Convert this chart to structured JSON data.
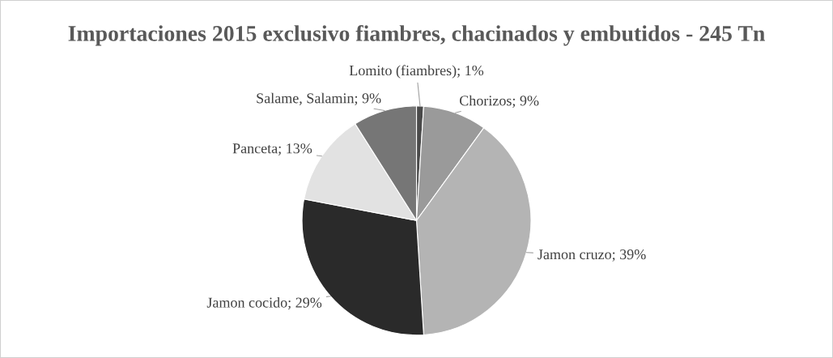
{
  "chart_data": {
    "type": "pie",
    "title": "Importaciones 2015 exclusivo fiambres, chacinados y embutidos - 245 Tn",
    "categories": [
      "Lomito (fiambres)",
      "Chorizos",
      "Jamon cruzo",
      "Jamon cocido",
      "Panceta",
      "Salame, Salamin"
    ],
    "values": [
      1,
      9,
      39,
      29,
      13,
      9
    ],
    "value_labels": [
      "1%",
      "9%",
      "39%",
      "29%",
      "13%",
      "9%"
    ],
    "colors": [
      "#4a4a4a",
      "#9a9a9a",
      "#b4b4b4",
      "#2a2a2a",
      "#e2e2e2",
      "#767676"
    ],
    "legend": false
  }
}
